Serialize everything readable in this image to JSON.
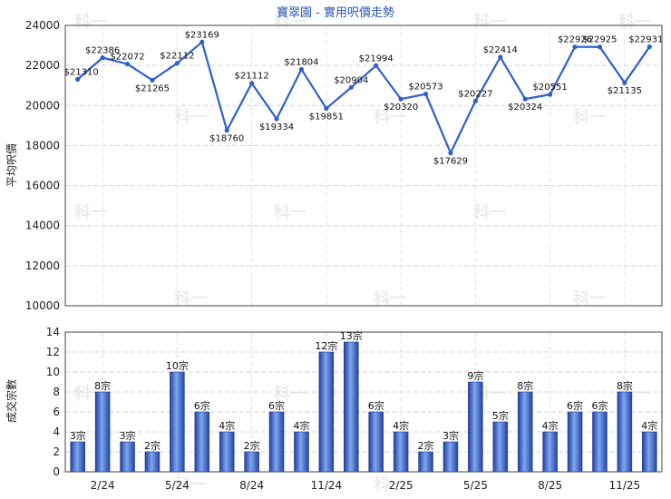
{
  "chart_data": [
    {
      "type": "line",
      "title": "寶翠園 - 實用呎價走勢",
      "ylabel": "平均呎價",
      "ylim": [
        10000,
        24000
      ],
      "yticks": [
        10000,
        12000,
        14000,
        16000,
        18000,
        20000,
        22000,
        24000
      ],
      "series": [
        {
          "values": [
            21310,
            22386,
            22072,
            21265,
            22112,
            23169,
            18760,
            21112,
            19334,
            21804,
            19851,
            20904,
            21994,
            20320,
            20573,
            17629,
            20227,
            22414,
            20324,
            20551,
            22926,
            22925,
            21135,
            22931
          ],
          "labels": [
            "$21310",
            "$22386",
            "$22072",
            "$21265",
            "$22112",
            "$23169",
            "$18760",
            "$21112",
            "$19334",
            "$21804",
            "$19851",
            "$20904",
            "$21994",
            "$20320",
            "$20573",
            "$17629",
            "$20227",
            "$22414",
            "$20324",
            "$20551",
            "$22926",
            "$22925",
            "$21135",
            "$22931"
          ]
        }
      ],
      "color": "#2f5fcc",
      "grid": true
    },
    {
      "type": "bar",
      "ylabel": "成交宗數",
      "ylim": [
        0,
        14
      ],
      "yticks": [
        0,
        2,
        4,
        6,
        8,
        10,
        12,
        14
      ],
      "categories": [
        "",
        "2/24",
        "",
        "",
        "5/24",
        "",
        "",
        "8/24",
        "",
        "",
        "11/24",
        "",
        "",
        "2/25",
        "",
        "",
        "5/25",
        "",
        "",
        "8/25",
        "",
        "",
        "11/25",
        ""
      ],
      "xticks": [
        "2/24",
        "5/24",
        "8/24",
        "11/24",
        "2/25",
        "5/25",
        "8/25",
        "11/25"
      ],
      "values": [
        3,
        8,
        3,
        2,
        10,
        6,
        4,
        2,
        6,
        4,
        12,
        13,
        6,
        4,
        2,
        3,
        9,
        5,
        8,
        4,
        6,
        6,
        8,
        4
      ],
      "labels": [
        "3宗",
        "8宗",
        "3宗",
        "2宗",
        "10宗",
        "6宗",
        "4宗",
        "2宗",
        "6宗",
        "4宗",
        "12宗",
        "13宗",
        "6宗",
        "4宗",
        "2宗",
        "3宗",
        "9宗",
        "5宗",
        "8宗",
        "4宗",
        "6宗",
        "6宗",
        "8宗",
        "4宗"
      ],
      "color": "#2f5fcc",
      "grid": true
    }
  ],
  "watermark": "科一"
}
